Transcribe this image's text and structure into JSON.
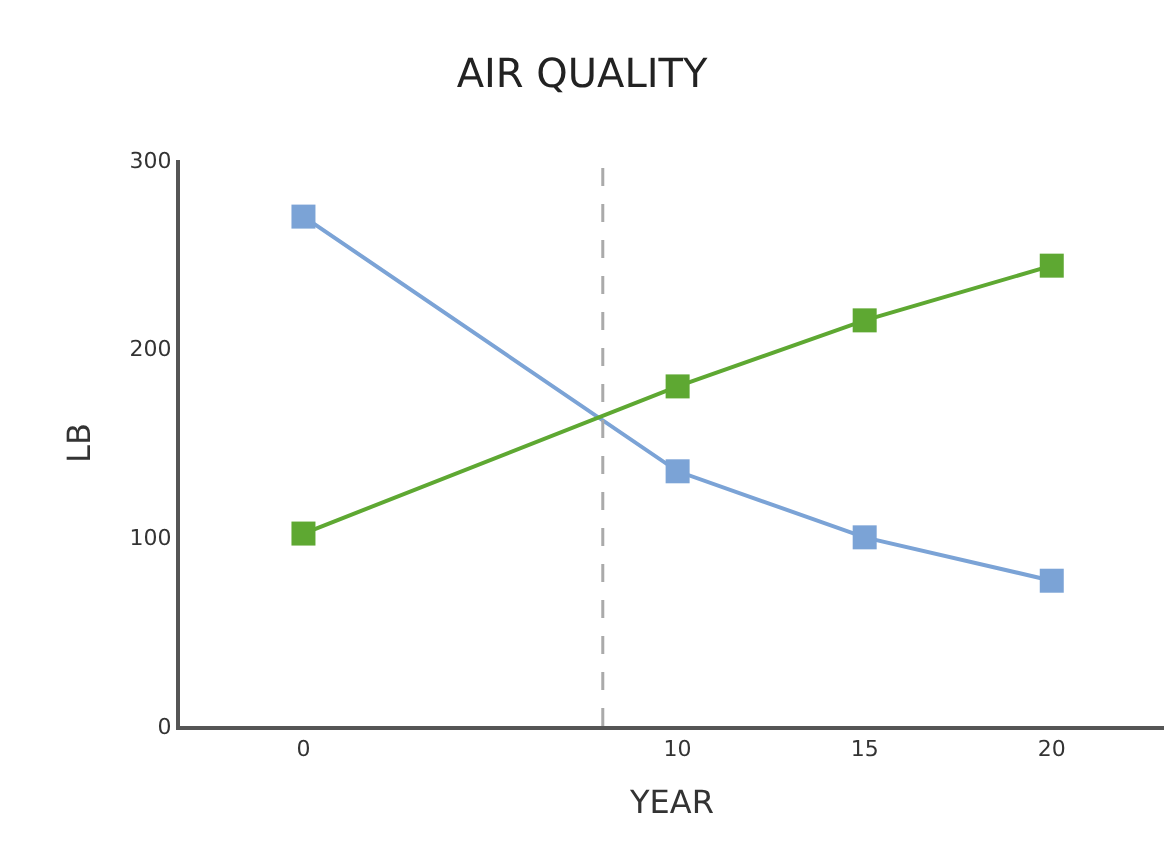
{
  "chart_data": {
    "type": "line",
    "title": "AIR QUALITY",
    "xlabel": "YEAR",
    "ylabel": "LB",
    "x": [
      0,
      10,
      15,
      20
    ],
    "series": [
      {
        "color": "#7ba3d6",
        "values": [
          270,
          135,
          100,
          77
        ]
      },
      {
        "color": "#5ea832",
        "values": [
          102,
          180,
          215,
          244
        ]
      }
    ],
    "xlim": [
      -3.3,
      23
    ],
    "xticks": [
      0,
      10,
      15,
      20
    ],
    "ylim": [
      0,
      300
    ],
    "yticks": [
      0,
      100,
      200,
      300
    ],
    "ref_lines": [
      {
        "axis": "x",
        "value": 8,
        "color": "#aaaaaa",
        "line_style": "dashed"
      }
    ],
    "marker": "square",
    "line_style": "solid"
  }
}
